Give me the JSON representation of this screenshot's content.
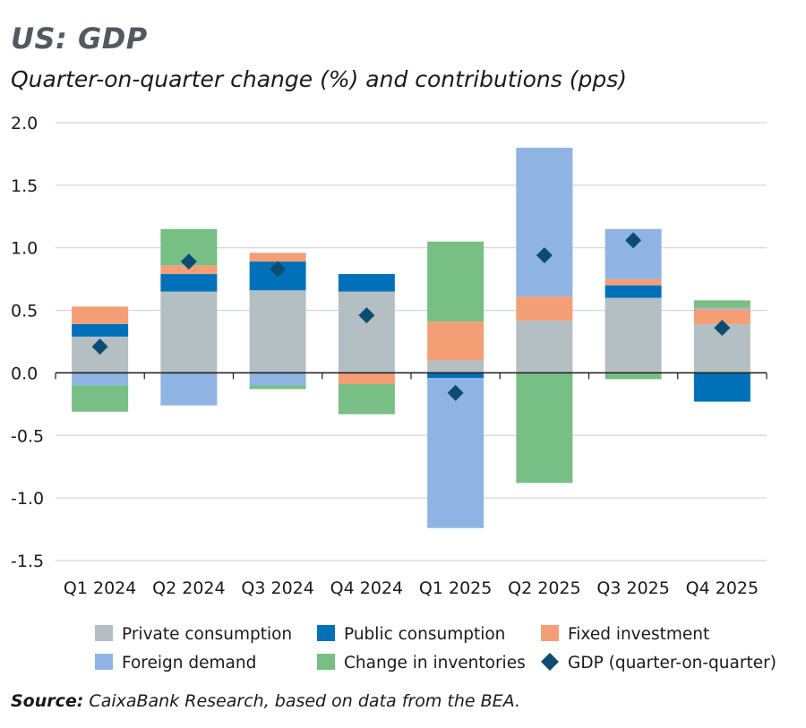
{
  "title": "US: GDP",
  "subtitle": "Quarter-on-quarter change (%) and contributions (pps)",
  "source_label": "Source:",
  "source_text": " CaixaBank Research, based on data from the BEA.",
  "chart_data": {
    "type": "bar",
    "stacked": true,
    "categories": [
      "Q1 2024",
      "Q2 2024",
      "Q3 2024",
      "Q4 2024",
      "Q1 2025",
      "Q2 2025",
      "Q3 2025",
      "Q4 2025"
    ],
    "ylim": [
      -1.5,
      2.0
    ],
    "yticks": [
      2.0,
      1.5,
      1.0,
      0.5,
      0.0,
      -0.5,
      -1.0,
      -1.5
    ],
    "ytick_labels": [
      "2.0",
      "1.5",
      "1.0",
      "0.5",
      "0.0",
      "-0.5",
      "-1.0",
      "-1.5"
    ],
    "grid": true,
    "legend_position": "bottom",
    "series": [
      {
        "name": "Private consumption",
        "color": "#b3bfc3",
        "values": [
          0.29,
          0.65,
          0.66,
          0.65,
          0.1,
          0.42,
          0.6,
          0.39
        ]
      },
      {
        "name": "Public consumption",
        "color": "#0071b9",
        "values": [
          0.1,
          0.14,
          0.23,
          0.14,
          -0.04,
          0.0,
          0.1,
          -0.23
        ]
      },
      {
        "name": "Fixed investment",
        "color": "#f49e76",
        "values": [
          0.14,
          0.07,
          0.07,
          -0.09,
          0.31,
          0.19,
          0.05,
          0.12
        ]
      },
      {
        "name": "Foreign demand",
        "color": "#8fb4e3",
        "values": [
          -0.1,
          -0.26,
          -0.1,
          0.0,
          -1.2,
          1.19,
          0.4,
          0.01
        ]
      },
      {
        "name": "Change in inventories",
        "color": "#77bf85",
        "values": [
          -0.21,
          0.29,
          -0.03,
          -0.24,
          0.64,
          -0.88,
          -0.05,
          0.06
        ]
      }
    ],
    "gdp": {
      "name": "GDP (quarter-on-quarter)",
      "color": "#0d4c72",
      "values": [
        0.21,
        0.89,
        0.83,
        0.46,
        -0.16,
        0.94,
        1.06,
        0.36
      ]
    }
  }
}
